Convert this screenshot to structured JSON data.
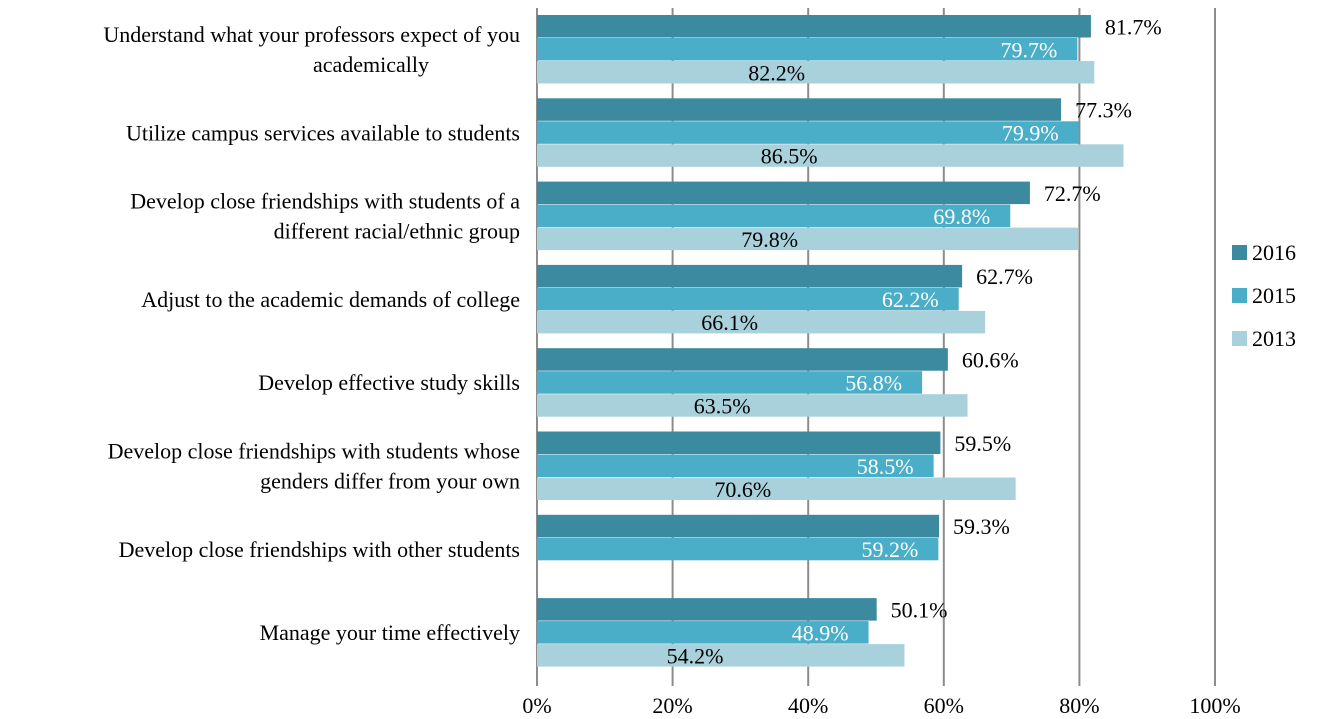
{
  "chart_data": {
    "type": "bar",
    "orientation": "horizontal",
    "categories": [
      "Understand what your professors expect of you academically",
      "Utilize campus services available to students",
      "Develop close friendships with students of a different racial/ethnic group",
      "Adjust to the academic demands of college",
      "Develop effective study skills",
      "Develop close friendships with students whose genders differ from your own",
      "Develop close friendships with other students",
      "Manage your time effectively"
    ],
    "category_lines": [
      [
        "Understand what your professors expect of you",
        "academically"
      ],
      [
        "Utilize campus services available to students"
      ],
      [
        "Develop close friendships with students of a",
        "different racial/ethnic group"
      ],
      [
        "Adjust to the academic demands of college"
      ],
      [
        "Develop effective study skills"
      ],
      [
        "Develop close friendships with students whose",
        "genders differ from your own"
      ],
      [
        "Develop close friendships with other students"
      ],
      [
        "Manage your time effectively"
      ]
    ],
    "series": [
      {
        "name": "2016",
        "color": "#3b8aa0",
        "label_color": "#000000",
        "values": [
          81.7,
          77.3,
          72.7,
          62.7,
          60.6,
          59.5,
          59.3,
          50.1
        ],
        "labels": [
          "81.7%",
          "77.3%",
          "72.7%",
          "62.7%",
          "60.6%",
          "59.5%",
          "59.3%",
          "50.1%"
        ]
      },
      {
        "name": "2015",
        "color": "#4aaec8",
        "label_color": "#ffffff",
        "values": [
          79.7,
          79.9,
          69.8,
          62.2,
          56.8,
          58.5,
          59.2,
          48.9
        ],
        "labels": [
          "79.7%",
          "79.9%",
          "69.8%",
          "62.2%",
          "56.8%",
          "58.5%",
          "59.2%",
          "48.9%"
        ]
      },
      {
        "name": "2013",
        "color": "#a8d1dc",
        "label_color": "#000000",
        "values": [
          82.2,
          86.5,
          79.8,
          66.1,
          63.5,
          70.6,
          null,
          54.2
        ],
        "labels": [
          "82.2%",
          "86.5%",
          "79.8%",
          "66.1%",
          "63.5%",
          "70.6%",
          null,
          "54.2%"
        ]
      }
    ],
    "xlim": [
      0,
      100
    ],
    "x_ticks": [
      0,
      20,
      40,
      60,
      80,
      100
    ],
    "x_tick_labels": [
      "0%",
      "20%",
      "40%",
      "60%",
      "80%",
      "100%"
    ],
    "grid": true,
    "grid_color": "#8c8c8c",
    "legend_position": "right",
    "legend_order": [
      "2016",
      "2015",
      "2013"
    ]
  }
}
